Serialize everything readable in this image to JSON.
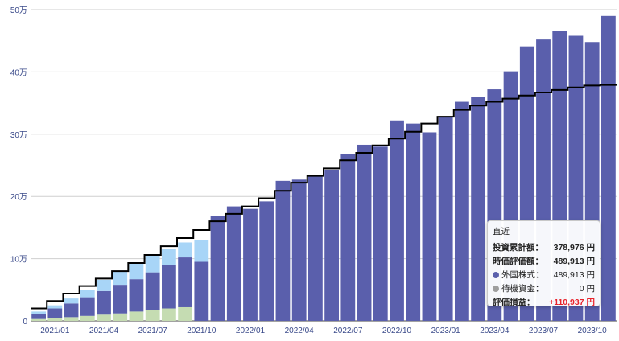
{
  "chart_data": {
    "type": "bar",
    "stacked": true,
    "categories": [
      "2020/12",
      "2021/01",
      "2021/02",
      "2021/03",
      "2021/04",
      "2021/05",
      "2021/06",
      "2021/07",
      "2021/08",
      "2021/09",
      "2021/10",
      "2021/11",
      "2021/12",
      "2022/01",
      "2022/02",
      "2022/03",
      "2022/04",
      "2022/05",
      "2022/06",
      "2022/07",
      "2022/08",
      "2022/09",
      "2022/10",
      "2022/11",
      "2022/12",
      "2023/01",
      "2023/02",
      "2023/03",
      "2023/04",
      "2023/05",
      "2023/06",
      "2023/07",
      "2023/08",
      "2023/09",
      "2023/10",
      "2023/11"
    ],
    "x_tick_labels": [
      "2021/01",
      "2021/04",
      "2021/07",
      "2021/10",
      "2022/01",
      "2022/04",
      "2022/07",
      "2022/10",
      "2023/01",
      "2023/04",
      "2023/07",
      "2023/10"
    ],
    "y_tick_labels": [
      "0",
      "10万",
      "20万",
      "30万",
      "40万",
      "50万"
    ],
    "ylim": [
      0,
      500000
    ],
    "grid": true,
    "series": [
      {
        "values": [
          3000,
          5000,
          6000,
          8000,
          10000,
          12000,
          15000,
          18000,
          20000,
          22000,
          0,
          0,
          0,
          0,
          0,
          0,
          0,
          0,
          0,
          0,
          0,
          0,
          0,
          0,
          0,
          0,
          0,
          0,
          0,
          0,
          0,
          0,
          0,
          0,
          0,
          0
        ],
        "color": "#c5dcb2"
      },
      {
        "values": [
          8000,
          15000,
          22000,
          30000,
          38000,
          46000,
          52000,
          60000,
          70000,
          80000,
          95000,
          168000,
          184000,
          180000,
          192000,
          225000,
          227000,
          235000,
          243000,
          268000,
          283000,
          280000,
          322000,
          317000,
          303000,
          328000,
          352000,
          360000,
          372000,
          401000,
          441000,
          452000,
          466000,
          458000,
          448000,
          489913
        ],
        "color": "#5a5fac"
      },
      {
        "values": [
          4000,
          5000,
          8000,
          12000,
          18000,
          22000,
          25000,
          27000,
          25000,
          24000,
          35000,
          0,
          0,
          0,
          0,
          0,
          0,
          0,
          0,
          0,
          0,
          0,
          0,
          0,
          0,
          0,
          0,
          0,
          0,
          0,
          0,
          0,
          0,
          0,
          0,
          0
        ],
        "color": "#a8d5f7"
      }
    ],
    "line": {
      "values": [
        20000,
        32000,
        44000,
        56000,
        68000,
        80000,
        93000,
        106000,
        120000,
        133000,
        146000,
        160000,
        172000,
        184000,
        197000,
        209000,
        222000,
        233000,
        245000,
        258000,
        270000,
        282000,
        293000,
        304000,
        317000,
        328000,
        339000,
        346000,
        352000,
        357000,
        362000,
        367000,
        371000,
        375000,
        378000,
        378976
      ],
      "color": "#000000"
    }
  },
  "tooltip": {
    "title": "直近",
    "rows": [
      {
        "label": "投資累計額：",
        "value": "378,976 円",
        "bold": true
      },
      {
        "label": "時価評価額：",
        "value": "489,913 円",
        "bold": true
      },
      {
        "label": "外国株式：",
        "value": "489,913 円",
        "dot": "#5a5fac"
      },
      {
        "label": "待機資金：",
        "value": "0 円",
        "dot": "#9e9e9e"
      },
      {
        "label": "評価損益：",
        "value": "+110,937 円",
        "bold": true,
        "gain": true
      }
    ]
  }
}
